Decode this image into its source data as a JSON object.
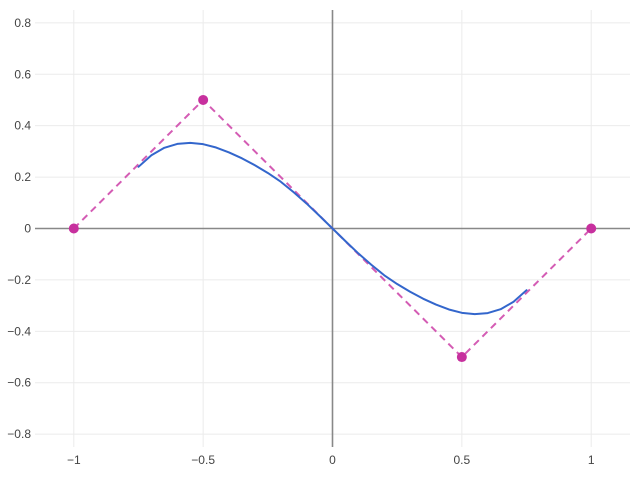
{
  "chart_data": {
    "type": "line",
    "title": "",
    "xlabel": "",
    "ylabel": "",
    "xlim": [
      -1.15,
      1.15
    ],
    "ylim": [
      -0.85,
      0.85
    ],
    "grid": true,
    "zero_lines": true,
    "x_ticks": [
      {
        "value": -1,
        "label": "−1"
      },
      {
        "value": -0.5,
        "label": "−0.5"
      },
      {
        "value": 0,
        "label": "0"
      },
      {
        "value": 0.5,
        "label": "0.5"
      },
      {
        "value": 1,
        "label": "1"
      }
    ],
    "y_ticks": [
      {
        "value": 0.8,
        "label": "0.8"
      },
      {
        "value": 0.6,
        "label": "0.6"
      },
      {
        "value": 0.4,
        "label": "0.4"
      },
      {
        "value": 0.2,
        "label": "0.2"
      },
      {
        "value": 0,
        "label": "0"
      },
      {
        "value": -0.2,
        "label": "−0.2"
      },
      {
        "value": -0.4,
        "label": "−0.4"
      },
      {
        "value": -0.6,
        "label": "−0.6"
      },
      {
        "value": -0.8,
        "label": "−0.8"
      }
    ],
    "series": [
      {
        "kind": "dashed-line-with-markers",
        "color": "#d45cb4",
        "marker_color": "#c7309e",
        "x": [
          -1,
          -0.5,
          0.5,
          1
        ],
        "y": [
          0,
          0.5,
          -0.5,
          0
        ]
      },
      {
        "kind": "smooth-line",
        "color": "#3366cc",
        "x": [
          -0.75,
          -0.7,
          -0.65,
          -0.6,
          -0.55,
          -0.5,
          -0.45,
          -0.4,
          -0.35,
          -0.3,
          -0.25,
          -0.2,
          -0.15,
          -0.1,
          -0.05,
          0,
          0.05,
          0.1,
          0.15,
          0.2,
          0.25,
          0.3,
          0.35,
          0.4,
          0.45,
          0.5,
          0.55,
          0.6,
          0.65,
          0.7,
          0.75
        ],
        "y": [
          0.24,
          0.285,
          0.314,
          0.329,
          0.333,
          0.328,
          0.315,
          0.296,
          0.273,
          0.246,
          0.216,
          0.182,
          0.141,
          0.097,
          0.049,
          0,
          -0.049,
          -0.097,
          -0.141,
          -0.182,
          -0.216,
          -0.246,
          -0.273,
          -0.296,
          -0.315,
          -0.328,
          -0.333,
          -0.329,
          -0.314,
          -0.285,
          -0.24
        ]
      }
    ]
  }
}
